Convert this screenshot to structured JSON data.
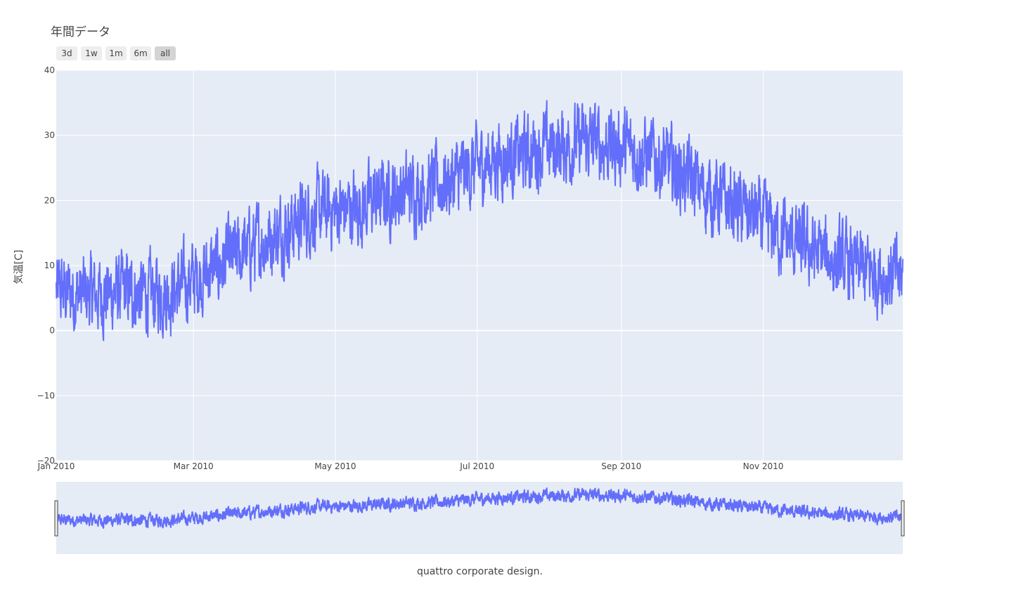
{
  "chart_data": {
    "type": "line",
    "title": "年間データ",
    "ylabel": "気温[C]",
    "xlabel": "",
    "ylim": [
      -20,
      40
    ],
    "yticks": [
      40,
      30,
      20,
      10,
      0,
      -10,
      -20
    ],
    "ytick_labels": [
      "40",
      "30",
      "20",
      "10",
      "0",
      "−10",
      "−20"
    ],
    "xlim": [
      "2010-01-01",
      "2010-12-31"
    ],
    "xticks": [
      {
        "date": "2010-01-01",
        "label": "Jan 2010"
      },
      {
        "date": "2010-03-01",
        "label": "Mar 2010"
      },
      {
        "date": "2010-05-01",
        "label": "May 2010"
      },
      {
        "date": "2010-07-01",
        "label": "Jul 2010"
      },
      {
        "date": "2010-09-01",
        "label": "Sep 2010"
      },
      {
        "date": "2010-11-01",
        "label": "Nov 2010"
      }
    ],
    "grid": true,
    "line_color": "#636efa",
    "plot_bg": "#e5ecf6",
    "rangeselector": [
      "3d",
      "1w",
      "1m",
      "6m",
      "all"
    ],
    "rangeselector_active": "all",
    "rangeslider": true,
    "series": [
      {
        "x": [
          "2010-01-01",
          "2010-01-11",
          "2010-01-21",
          "2010-01-31",
          "2010-02-10",
          "2010-02-20",
          "2010-03-02",
          "2010-03-12",
          "2010-03-22",
          "2010-04-01",
          "2010-04-11",
          "2010-04-21",
          "2010-05-01",
          "2010-05-11",
          "2010-05-21",
          "2010-05-31",
          "2010-06-10",
          "2010-06-20",
          "2010-06-30",
          "2010-07-10",
          "2010-07-20",
          "2010-07-30",
          "2010-08-09",
          "2010-08-19",
          "2010-08-29",
          "2010-09-08",
          "2010-09-18",
          "2010-09-28",
          "2010-10-08",
          "2010-10-18",
          "2010-10-28",
          "2010-11-07",
          "2010-11-17",
          "2010-11-27",
          "2010-12-07",
          "2010-12-17",
          "2010-12-27",
          "2010-12-31"
        ],
        "y": [
          6,
          5.5,
          5.5,
          6,
          5.5,
          6,
          8,
          10,
          12,
          14,
          16,
          18,
          18.5,
          19,
          20.5,
          21.5,
          22,
          23,
          25,
          26.5,
          27,
          28,
          28.5,
          29,
          28.5,
          27.5,
          26,
          24,
          21,
          19.5,
          17.5,
          15,
          13,
          11.5,
          10,
          9,
          8.5,
          8
        ]
      }
    ]
  },
  "footer": {
    "note": "quattro corporate design."
  }
}
